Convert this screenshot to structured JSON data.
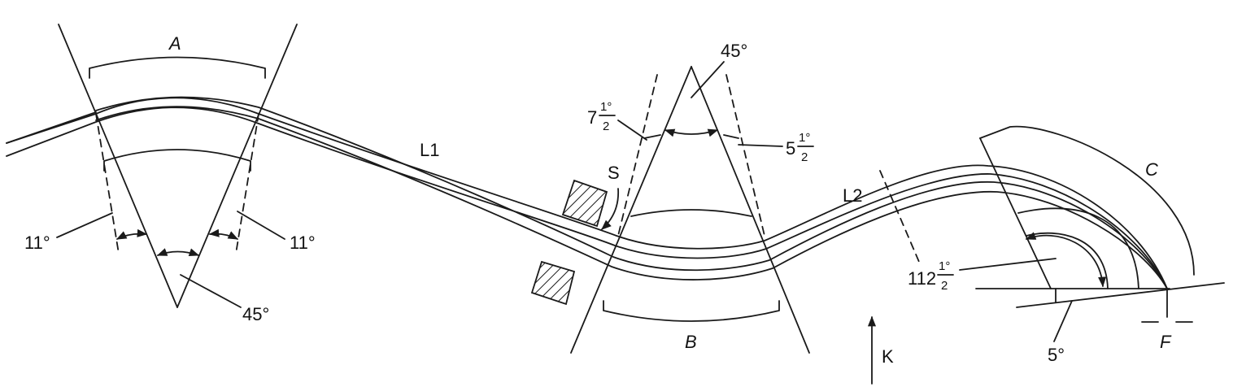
{
  "diagram": {
    "magnet_a": "A",
    "magnet_b": "B",
    "magnet_c": "C",
    "drift_l1": "L1",
    "drift_l2": "L2",
    "slit": "S",
    "focus": "F",
    "axis_k": "K",
    "angle_a_left_edge": "11°",
    "angle_a_right_edge": "11°",
    "angle_a_wedge": "45°",
    "angle_b_wedge": "45°",
    "angle_b_left_whole": "7",
    "angle_b_left_num": "1°",
    "angle_b_left_den": "2",
    "angle_b_right_whole": "5",
    "angle_b_right_num": "1°",
    "angle_b_right_den": "2",
    "angle_c_whole": "112",
    "angle_c_num": "1°",
    "angle_c_den": "2",
    "angle_focal_plane": "5°"
  }
}
